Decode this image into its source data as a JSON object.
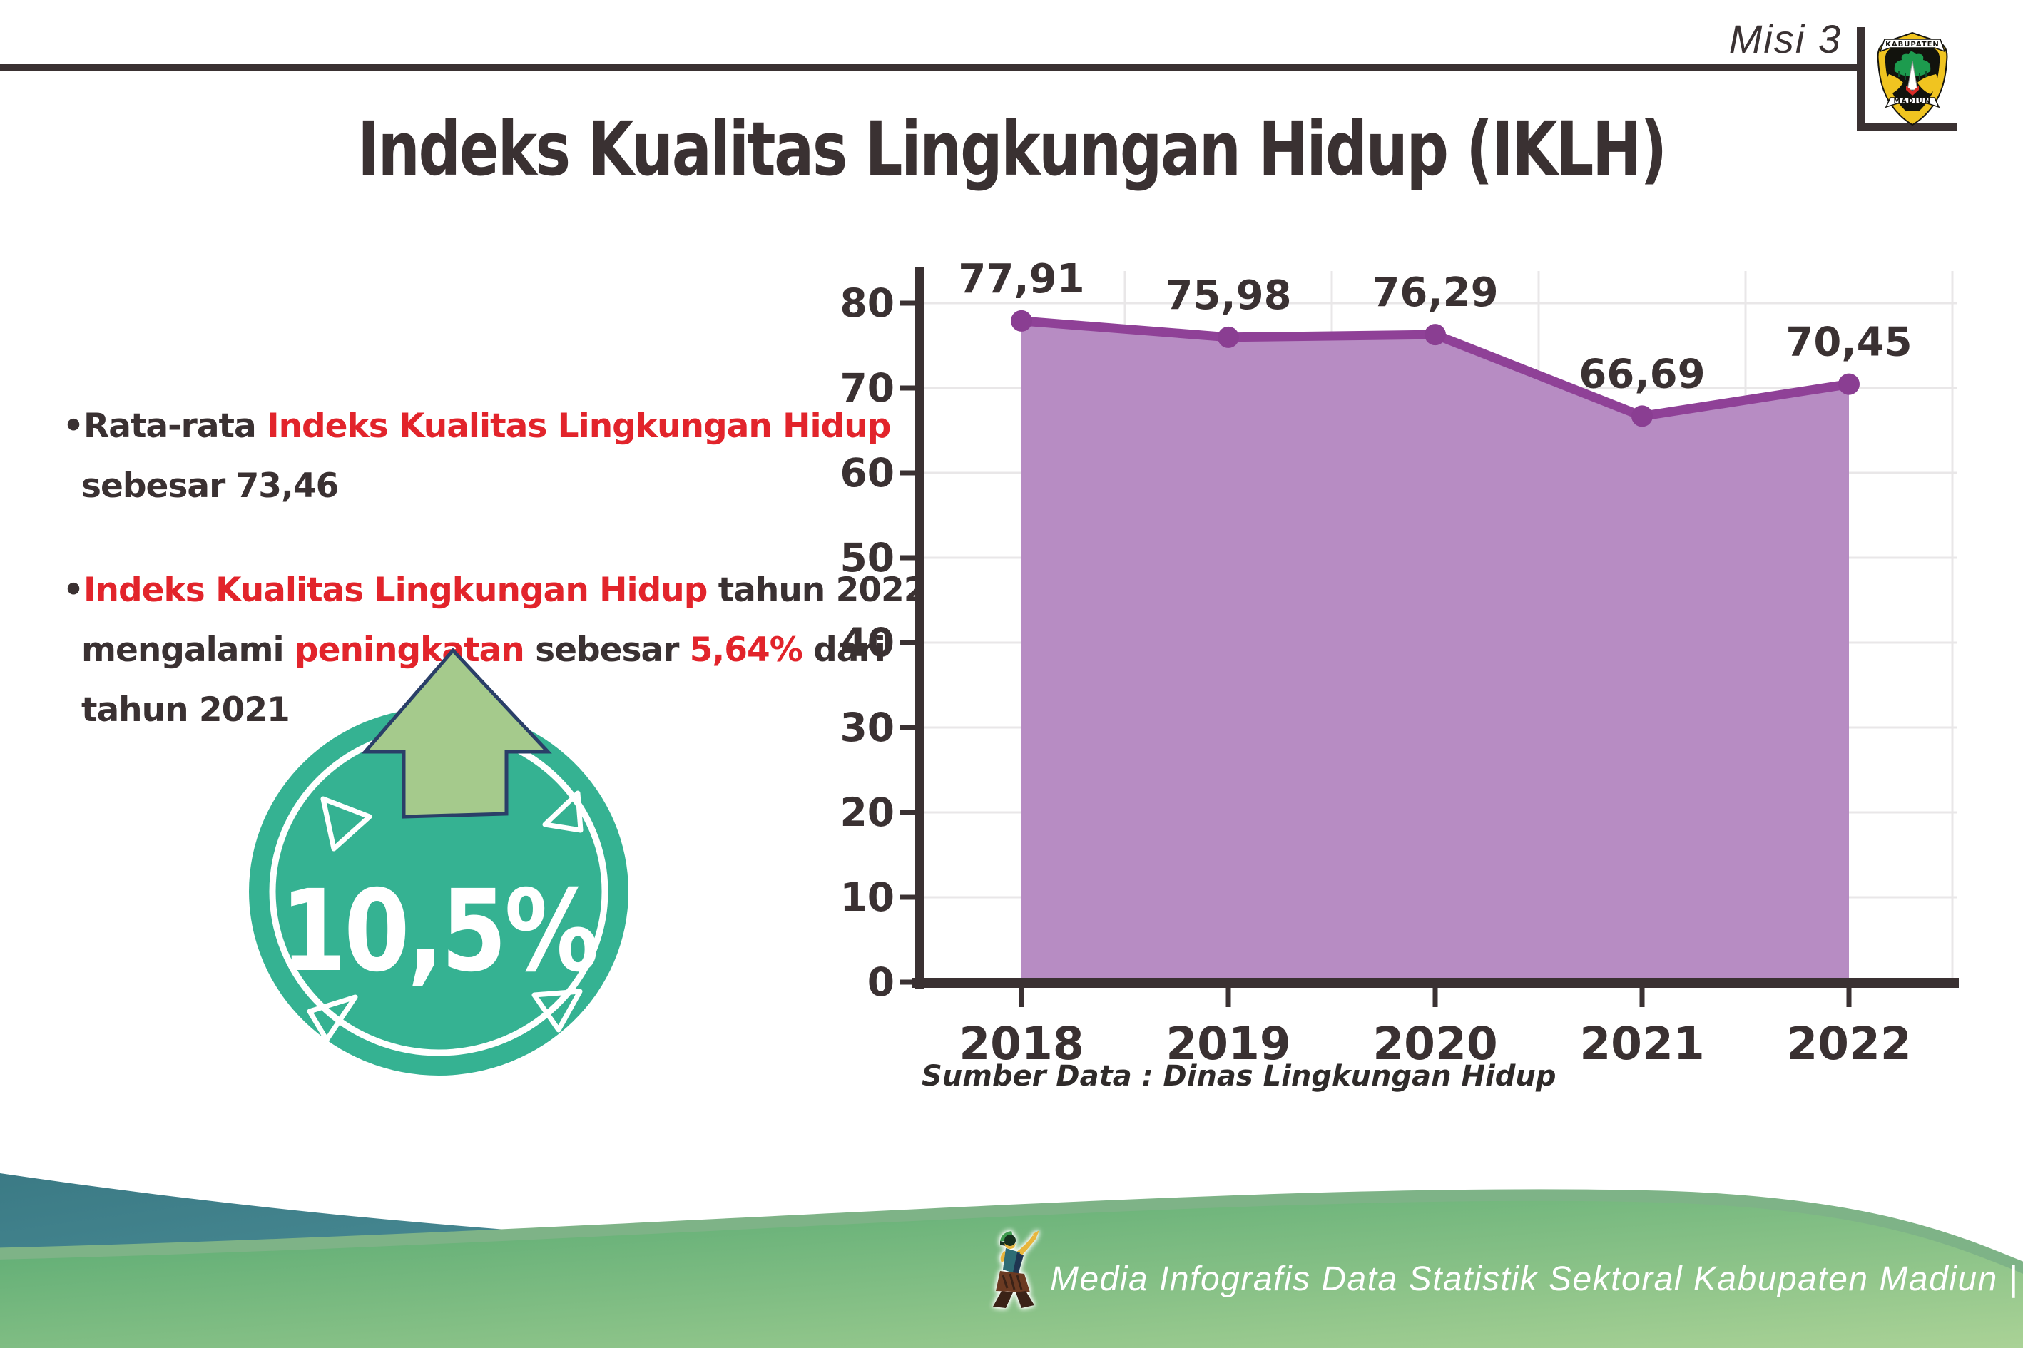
{
  "header": {
    "misi": "Misi 3"
  },
  "logo": {
    "top": "KABUPATEN",
    "bottom": "MADIUN"
  },
  "title": "Indeks Kualitas Lingkungan Hidup (IKLH)",
  "bullets": [
    {
      "lines": [
        [
          {
            "text": "•Rata-rata ",
            "color": "dark"
          },
          {
            "text": "Indeks Kualitas Lingkungan Hidup",
            "color": "red"
          }
        ],
        [
          {
            "text": "sebesar 73,46",
            "color": "dark"
          }
        ]
      ]
    },
    {
      "lines": [
        [
          {
            "text": "•",
            "color": "dark"
          },
          {
            "text": "Indeks Kualitas Lingkungan Hidup",
            "color": "red"
          },
          {
            "text": " tahun 2022",
            "color": "dark"
          }
        ],
        [
          {
            "text": "mengalami ",
            "color": "dark"
          },
          {
            "text": "peningkatan",
            "color": "red"
          },
          {
            "text": " sebesar ",
            "color": "dark"
          },
          {
            "text": "5,64%",
            "color": "red"
          },
          {
            "text": " dari",
            "color": "dark"
          }
        ],
        [
          {
            "text": "tahun 2021",
            "color": "dark"
          }
        ]
      ]
    }
  ],
  "badge": {
    "value": "10,5%",
    "direction": "up-arrow"
  },
  "chart_data": {
    "type": "area",
    "title": "",
    "categories": [
      "2018",
      "2019",
      "2020",
      "2021",
      "2022"
    ],
    "values": [
      77.91,
      75.98,
      76.29,
      66.69,
      70.45
    ],
    "value_labels": [
      "77,91",
      "75,98",
      "76,29",
      "66,69",
      "70,45"
    ],
    "ylim": [
      0,
      80
    ],
    "ytick_step": 10,
    "yticks": [
      "0",
      "10",
      "20",
      "30",
      "40",
      "50",
      "60",
      "70",
      "80"
    ],
    "grid": true,
    "legend": "none",
    "source_note": "Sumber Data : Dinas Lingkungan Hidup"
  },
  "footer": {
    "text": "Media Infografis Data Statistik Sektoral Kabupaten Madiun |"
  },
  "colors": {
    "dark_text": "#3a3132",
    "red_accent": "#e2242b",
    "chart_line": "#8f4197",
    "chart_dot": "#8a3e92",
    "chart_fill": "#b78cc3",
    "gridline": "#e9e7e8",
    "badge_teal": "#35b292",
    "arrow_green": "#a5ca8c",
    "arrow_outline": "#2a3f68",
    "footer_teal_1": "#3b7a85",
    "footer_teal_2": "#559aa1",
    "footer_green_1": "#55a870",
    "footer_green_2": "#aad296",
    "footer_edge": "#7eb387",
    "crest_yellow": "#f0c420"
  }
}
